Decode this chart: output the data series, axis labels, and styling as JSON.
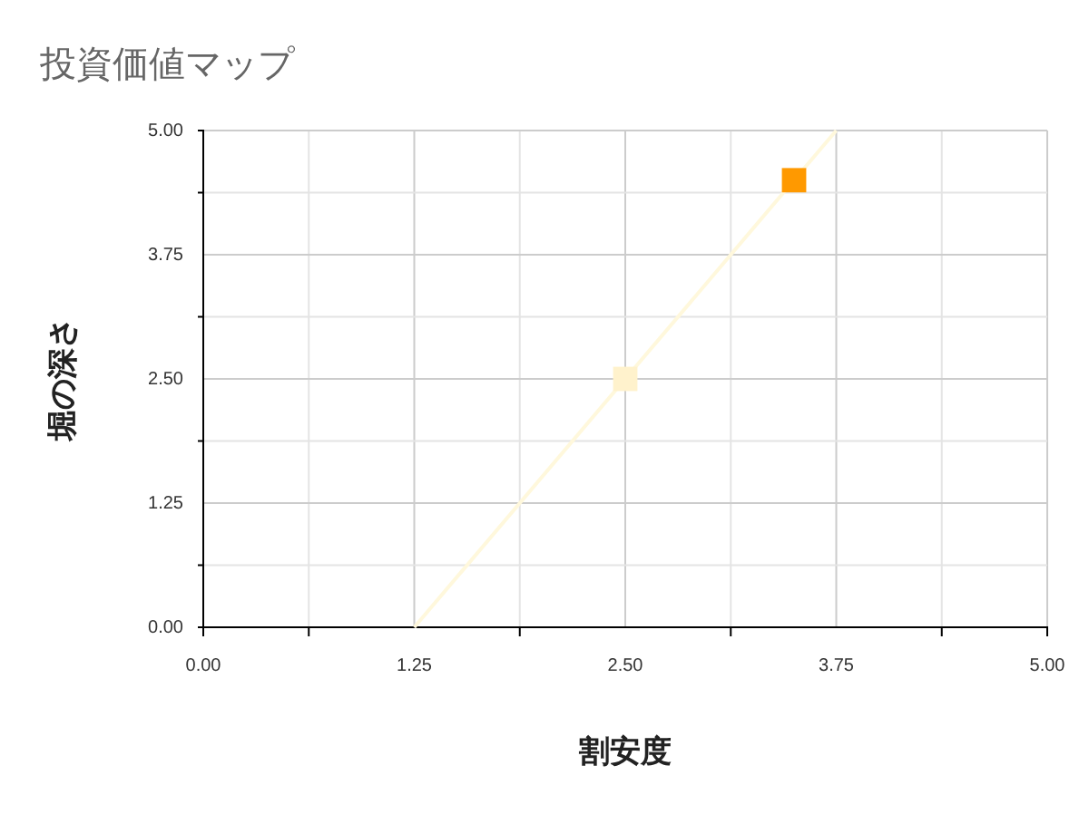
{
  "chart_data": {
    "type": "scatter",
    "title": "投資価値マップ",
    "xlabel": "割安度",
    "ylabel": "堀の深さ",
    "xlim": [
      0,
      5
    ],
    "ylim": [
      0,
      5
    ],
    "xticks": [
      {
        "value": 0,
        "label": "0.00"
      },
      {
        "value": 0.625,
        "label": null
      },
      {
        "value": 1.25,
        "label": "1.25"
      },
      {
        "value": 1.875,
        "label": null
      },
      {
        "value": 2.5,
        "label": "2.50"
      },
      {
        "value": 3.125,
        "label": null
      },
      {
        "value": 3.75,
        "label": "3.75"
      },
      {
        "value": 4.375,
        "label": null
      },
      {
        "value": 5,
        "label": "5.00"
      }
    ],
    "yticks": [
      {
        "value": 0,
        "label": "0.00"
      },
      {
        "value": 0.625,
        "label": null
      },
      {
        "value": 1.25,
        "label": "1.25"
      },
      {
        "value": 1.875,
        "label": null
      },
      {
        "value": 2.5,
        "label": "2.50"
      },
      {
        "value": 3.125,
        "label": null
      },
      {
        "value": 3.75,
        "label": "3.75"
      },
      {
        "value": 4.375,
        "label": null
      },
      {
        "value": 5,
        "label": "5.00"
      }
    ],
    "grid": true,
    "series": [
      {
        "type": "line",
        "x": [
          1.25,
          3.75
        ],
        "values": [
          0,
          5
        ],
        "color": "#fff8dc"
      },
      {
        "marker": "square",
        "x": [
          2.5,
          3.5
        ],
        "values": [
          2.5,
          4.5
        ],
        "colors": [
          "#fff2cc",
          "#ff9900"
        ]
      }
    ]
  }
}
